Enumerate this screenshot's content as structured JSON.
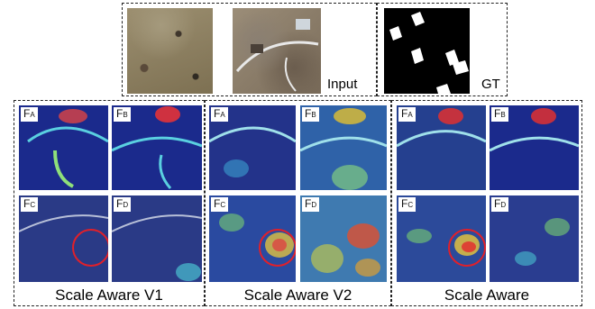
{
  "labels": {
    "input": "Input",
    "gt": "GT"
  },
  "panel_captions": [
    "Scale  Aware V1",
    "Scale  Aware V2",
    "Scale  Aware"
  ],
  "tiles": [
    {
      "main": "F",
      "sub": "A"
    },
    {
      "main": "F",
      "sub": "B"
    },
    {
      "main": "F",
      "sub": "C"
    },
    {
      "main": "F",
      "sub": "D"
    }
  ],
  "colors": {
    "heat_low": "#1b2a8c",
    "heat_high": "#d62020",
    "highlight": "#e0202a"
  }
}
